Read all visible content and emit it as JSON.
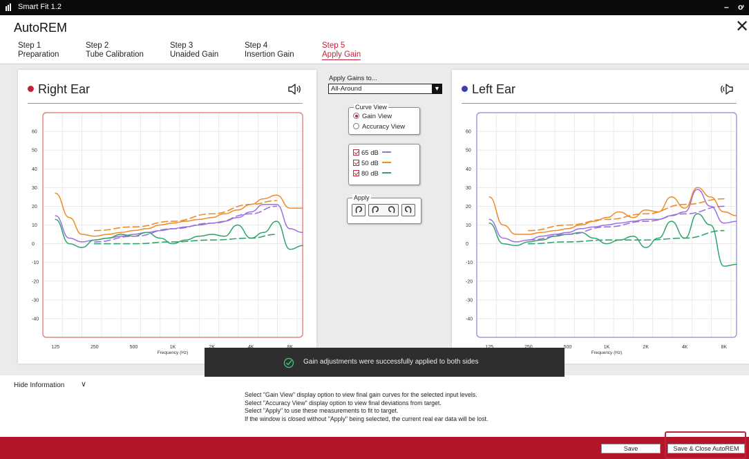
{
  "titlebar": {
    "app_name": "Smart Fit 1.2",
    "minimize": "–",
    "pin": "ơ"
  },
  "dialog": {
    "title": "AutoREM",
    "close_glyph": "✕"
  },
  "steps": [
    {
      "num": "Step 1",
      "name": "Preparation",
      "active": false
    },
    {
      "num": "Step 2",
      "name": "Tube Calibration",
      "active": false
    },
    {
      "num": "Step 3",
      "name": "Unaided Gain",
      "active": false
    },
    {
      "num": "Step 4",
      "name": "Insertion Gain",
      "active": false
    },
    {
      "num": "Step 5",
      "name": "Apply Gain",
      "active": true
    }
  ],
  "right_ear": {
    "title": "Right Ear",
    "color": "#c2213a",
    "icon": "speaker-right-icon"
  },
  "left_ear": {
    "title": "Left Ear",
    "color": "#3a3fa8",
    "icon": "speaker-left-icon"
  },
  "controls": {
    "apply_gains_label": "Apply Gains to...",
    "program_value": "All-Around",
    "curve_view_legend": "Curve View",
    "gain_view": "Gain View",
    "accuracy_view": "Accuracy View",
    "level_65": "65 dB",
    "level_50": "50 dB",
    "level_80": "80 dB",
    "apply_legend": "Apply"
  },
  "toast": {
    "text": "Gain adjustments were successfully applied to both sides",
    "icon": "check-circle-icon"
  },
  "info": {
    "toggle": "Hide Information",
    "lines": [
      "Select \"Gain View\" display option to view final gain curves for the selected input levels.",
      "Select \"Accuracy View\" display option to view final deviations from target.",
      "Select \"Apply\" to use these measurements to fit to target.",
      "If the window is closed without \"Apply\" being selected, the current real ear data will be lost."
    ]
  },
  "footer": {
    "save": "Save",
    "save_close": "Save & Close AutoREM"
  },
  "chart_data": [
    {
      "type": "line",
      "ear": "Right Ear",
      "xlabel": "Frequency (Hz)",
      "ylabel": "",
      "x_ticks": [
        "125",
        "250",
        "500",
        "1K",
        "2K",
        "4K",
        "8K"
      ],
      "x_scale": "log",
      "xlim": [
        100,
        10000
      ],
      "ylim": [
        -50,
        70
      ],
      "y_ticks": [
        60,
        50,
        40,
        30,
        20,
        10,
        0,
        -10,
        -20,
        -30,
        -40
      ],
      "grid": true,
      "frame_color": "#e36a6a",
      "series": [
        {
          "name": "65 dB",
          "color": "#9b6fe0",
          "style": "solid",
          "x": [
            125,
            160,
            200,
            250,
            315,
            400,
            500,
            630,
            800,
            1000,
            1250,
            1600,
            2000,
            2500,
            3150,
            4000,
            5000,
            6300,
            8000,
            10000
          ],
          "y": [
            15,
            3,
            1,
            2,
            3,
            4,
            5,
            6,
            7,
            8,
            9,
            10,
            11,
            12,
            14,
            17,
            21,
            21,
            8,
            6
          ]
        },
        {
          "name": "50 dB",
          "color": "#f08a24",
          "style": "solid",
          "x": [
            125,
            160,
            200,
            250,
            315,
            400,
            500,
            630,
            800,
            1000,
            1250,
            1600,
            2000,
            2500,
            3150,
            4000,
            5000,
            6300,
            8000,
            10000
          ],
          "y": [
            27,
            14,
            5,
            4,
            5,
            6,
            7,
            8,
            10,
            11,
            12,
            13,
            14,
            16,
            18,
            21,
            24,
            26,
            19,
            19
          ]
        },
        {
          "name": "80 dB",
          "color": "#2fa36b",
          "style": "solid",
          "x": [
            125,
            160,
            200,
            250,
            315,
            400,
            500,
            630,
            800,
            1000,
            1250,
            1600,
            2000,
            2500,
            3150,
            4000,
            5000,
            6300,
            8000,
            10000
          ],
          "y": [
            13,
            0,
            -2,
            2,
            3,
            5,
            4,
            6,
            3,
            0,
            2,
            4,
            5,
            4,
            10,
            3,
            6,
            12,
            -3,
            -1
          ]
        },
        {
          "name": "65 dB target",
          "color": "#9b6fe0",
          "style": "dashed",
          "x": [
            250,
            500,
            1000,
            2000,
            4000,
            6300
          ],
          "y": [
            1,
            4,
            8,
            11,
            16,
            20
          ]
        },
        {
          "name": "50 dB target",
          "color": "#f08a24",
          "style": "dashed",
          "x": [
            250,
            500,
            1000,
            2000,
            4000,
            6300
          ],
          "y": [
            7,
            9,
            12,
            16,
            21,
            23
          ]
        },
        {
          "name": "80 dB target",
          "color": "#2fa36b",
          "style": "dashed",
          "x": [
            250,
            500,
            1000,
            2000,
            4000,
            6300
          ],
          "y": [
            0,
            0,
            1,
            2,
            3,
            5
          ]
        }
      ]
    },
    {
      "type": "line",
      "ear": "Left Ear",
      "xlabel": "Frequency (Hz)",
      "ylabel": "",
      "x_ticks": [
        "125",
        "250",
        "500",
        "1K",
        "2K",
        "4K",
        "8K"
      ],
      "x_scale": "log",
      "xlim": [
        100,
        10000
      ],
      "ylim": [
        -50,
        70
      ],
      "y_ticks": [
        60,
        50,
        40,
        30,
        20,
        10,
        0,
        -10,
        -20,
        -30,
        -40
      ],
      "grid": true,
      "frame_color": "#8c86d8",
      "series": [
        {
          "name": "65 dB",
          "color": "#9b6fe0",
          "style": "solid",
          "x": [
            125,
            160,
            200,
            250,
            315,
            400,
            500,
            630,
            800,
            1000,
            1250,
            1600,
            2000,
            2500,
            3150,
            4000,
            5000,
            6300,
            8000,
            10000
          ],
          "y": [
            13,
            3,
            1,
            2,
            4,
            5,
            6,
            8,
            9,
            10,
            11,
            12,
            13,
            13,
            15,
            17,
            29,
            20,
            11,
            12
          ]
        },
        {
          "name": "50 dB",
          "color": "#f08a24",
          "style": "solid",
          "x": [
            125,
            160,
            200,
            250,
            315,
            400,
            500,
            630,
            800,
            1000,
            1250,
            1600,
            2000,
            2500,
            3150,
            4000,
            5000,
            6300,
            8000,
            10000
          ],
          "y": [
            25,
            10,
            5,
            5,
            6,
            7,
            8,
            10,
            12,
            14,
            17,
            14,
            18,
            17,
            25,
            19,
            30,
            25,
            17,
            15
          ]
        },
        {
          "name": "80 dB",
          "color": "#2fa36b",
          "style": "solid",
          "x": [
            125,
            160,
            200,
            250,
            315,
            400,
            500,
            630,
            800,
            1000,
            1250,
            1600,
            2000,
            2500,
            3150,
            4000,
            5000,
            6300,
            8000,
            10000
          ],
          "y": [
            11,
            0,
            -1,
            1,
            2,
            4,
            5,
            6,
            3,
            0,
            2,
            4,
            -2,
            3,
            12,
            3,
            16,
            10,
            -12,
            -11
          ]
        },
        {
          "name": "65 dB target",
          "color": "#9b6fe0",
          "style": "dashed",
          "x": [
            250,
            500,
            1000,
            2000,
            4000,
            8000
          ],
          "y": [
            2,
            5,
            9,
            12,
            16,
            20
          ]
        },
        {
          "name": "50 dB target",
          "color": "#f08a24",
          "style": "dashed",
          "x": [
            250,
            500,
            1000,
            2000,
            4000,
            8000
          ],
          "y": [
            7,
            10,
            13,
            16,
            21,
            24
          ]
        },
        {
          "name": "80 dB target",
          "color": "#2fa36b",
          "style": "dashed",
          "x": [
            250,
            500,
            1000,
            2000,
            4000,
            8000
          ],
          "y": [
            0,
            1,
            2,
            2,
            3,
            7
          ]
        }
      ]
    }
  ]
}
